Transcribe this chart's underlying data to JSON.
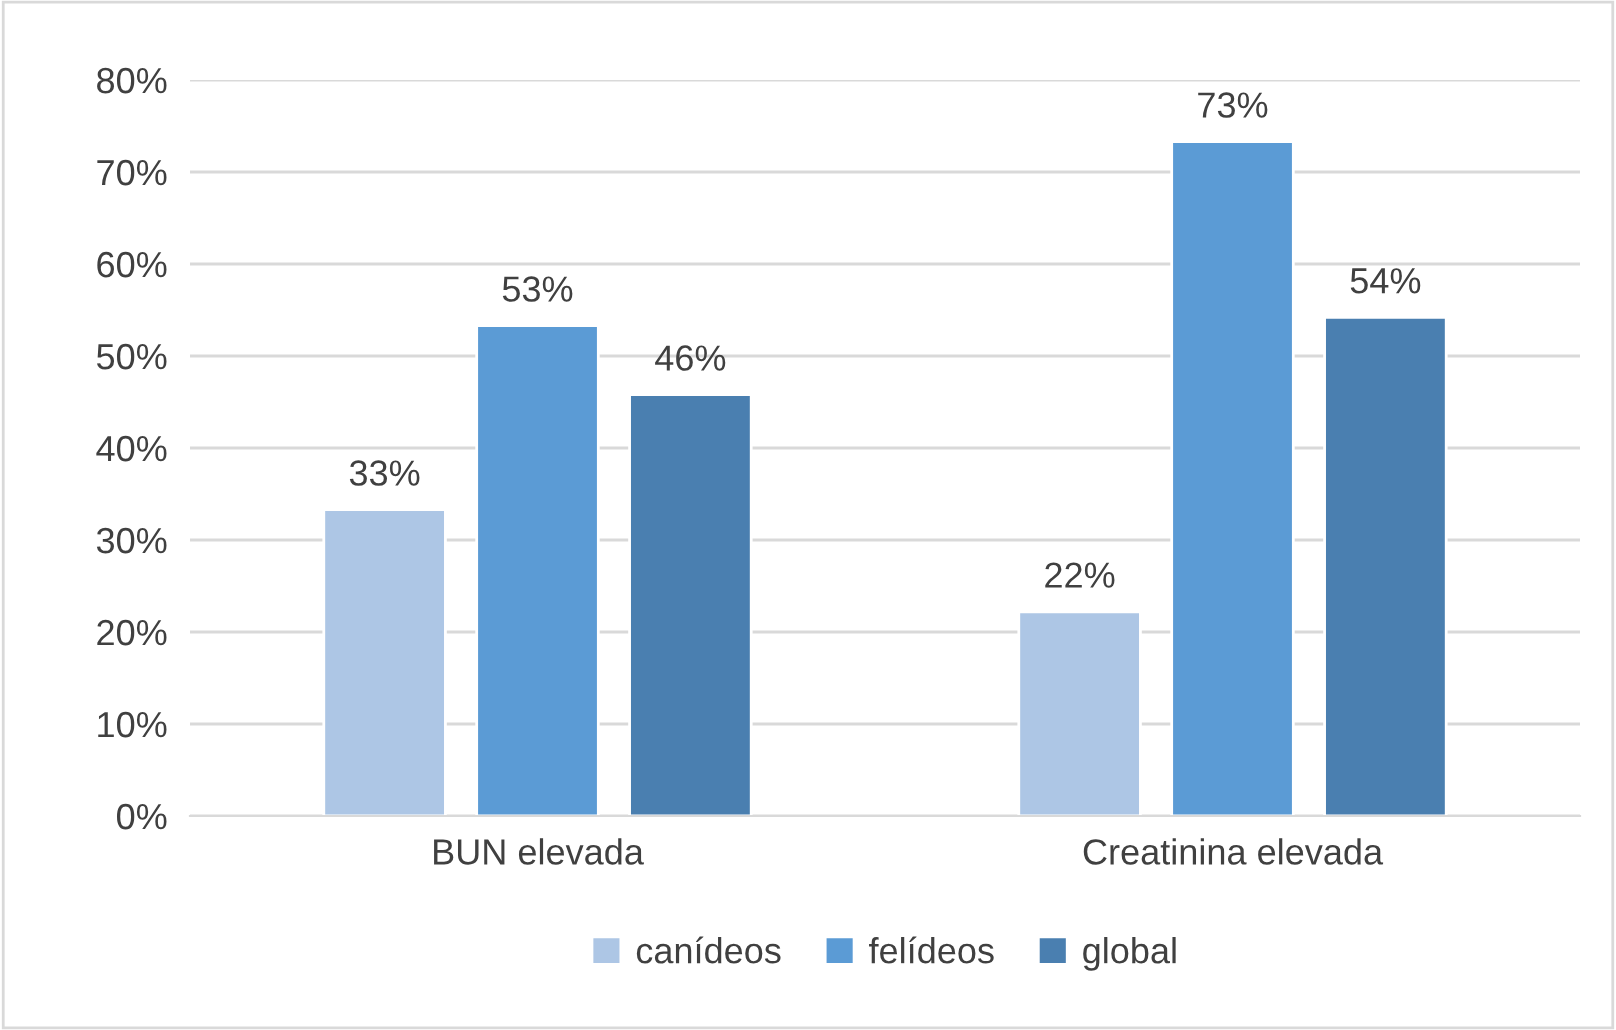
{
  "chart_data": {
    "type": "bar",
    "categories": [
      "BUN elevada",
      "Creatinina elevada"
    ],
    "series": [
      {
        "name": "canídeos",
        "color": "#adc6e5",
        "values": [
          33.3,
          22.2
        ],
        "value_labels": [
          "33%",
          "22%"
        ]
      },
      {
        "name": "felídeos",
        "color": "#5b9bd5",
        "values": [
          53.3,
          73.3
        ],
        "value_labels": [
          "53%",
          "73%"
        ]
      },
      {
        "name": "global",
        "color": "#4a7fb0",
        "values": [
          45.8,
          54.2
        ],
        "value_labels": [
          "46%",
          "54%"
        ]
      }
    ],
    "ylim": [
      0,
      80
    ],
    "yticks": [
      {
        "value": 0,
        "label": "0%"
      },
      {
        "value": 10,
        "label": "10%"
      },
      {
        "value": 20,
        "label": "20%"
      },
      {
        "value": 30,
        "label": "30%"
      },
      {
        "value": 40,
        "label": "40%"
      },
      {
        "value": 50,
        "label": "50%"
      },
      {
        "value": 60,
        "label": "60%"
      },
      {
        "value": 70,
        "label": "70%"
      },
      {
        "value": 80,
        "label": "80%"
      }
    ],
    "grid": "y",
    "legend": "bottom"
  }
}
